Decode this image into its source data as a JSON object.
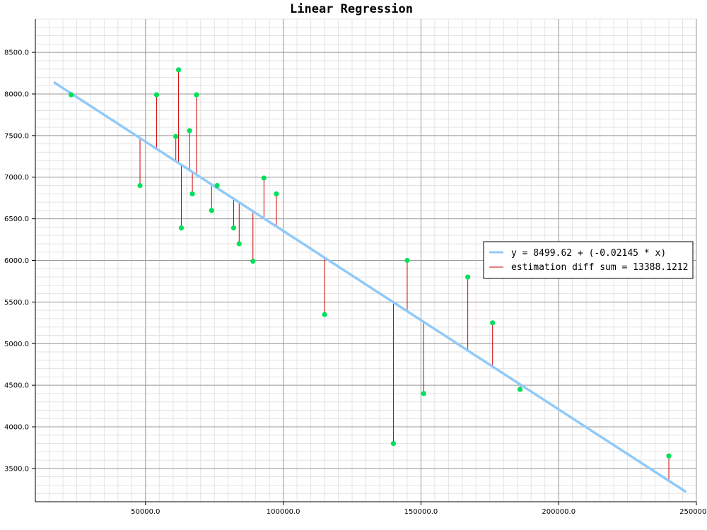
{
  "chart_data": {
    "type": "scatter",
    "title": "Linear Regression",
    "xlim": [
      10000,
      250000
    ],
    "ylim": [
      3100,
      8900
    ],
    "x_ticks": [
      50000,
      100000,
      150000,
      200000,
      250000
    ],
    "x_tick_labels": [
      "50000.0",
      "100000.0",
      "150000.0",
      "200000.0",
      "250000.0"
    ],
    "y_ticks": [
      3500,
      4000,
      4500,
      5000,
      5500,
      6000,
      6500,
      7000,
      7500,
      8000,
      8500
    ],
    "y_tick_labels": [
      "3500.0",
      "4000.0",
      "4500.0",
      "5000.0",
      "5500.0",
      "6000.0",
      "6500.0",
      "7000.0",
      "7500.0",
      "8000.0",
      "8500.0"
    ],
    "grid": true,
    "regression": {
      "intercept": 8499.62,
      "slope": -0.02145,
      "x_range": [
        17000,
        246000
      ]
    },
    "points": [
      {
        "x": 23000,
        "y": 7990
      },
      {
        "x": 48000,
        "y": 6900
      },
      {
        "x": 54000,
        "y": 7990
      },
      {
        "x": 61000,
        "y": 7490
      },
      {
        "x": 62000,
        "y": 8290
      },
      {
        "x": 63000,
        "y": 6390
      },
      {
        "x": 66000,
        "y": 7560
      },
      {
        "x": 67000,
        "y": 6800
      },
      {
        "x": 68500,
        "y": 7990
      },
      {
        "x": 74000,
        "y": 6600
      },
      {
        "x": 76000,
        "y": 6900
      },
      {
        "x": 82000,
        "y": 6390
      },
      {
        "x": 84000,
        "y": 6200
      },
      {
        "x": 89000,
        "y": 5990
      },
      {
        "x": 93000,
        "y": 6990
      },
      {
        "x": 97500,
        "y": 6800
      },
      {
        "x": 115000,
        "y": 5350
      },
      {
        "x": 140000,
        "y": 3800
      },
      {
        "x": 145000,
        "y": 6000
      },
      {
        "x": 151000,
        "y": 4400
      },
      {
        "x": 167000,
        "y": 5800
      },
      {
        "x": 176000,
        "y": 5250
      },
      {
        "x": 186000,
        "y": 4450
      },
      {
        "x": 240000,
        "y": 3650
      }
    ],
    "legend": {
      "placement": "right",
      "entries": [
        {
          "label": "y = 8499.62 + (-0.02145 * x)",
          "color": "#90caf9"
        },
        {
          "label": "estimation diff sum = 13388.1212",
          "color": "#cc0000"
        }
      ]
    },
    "colors": {
      "line": "#90caf9",
      "residual": "#cc0000",
      "point": "#00e05a"
    }
  }
}
